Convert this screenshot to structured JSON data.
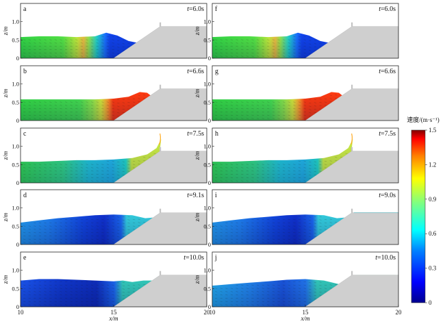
{
  "chart_data": {
    "type": "heatmap",
    "xlabel": "x/m",
    "ylabel": "z/m",
    "xlim": [
      10,
      20
    ],
    "ylim": [
      0,
      1.5
    ],
    "x_ticks": [
      "10",
      "15",
      "20"
    ],
    "y_ticks": [
      "0",
      "0.5",
      "1.0"
    ],
    "colorbar": {
      "label": "速度/(m·s⁻¹)",
      "range": [
        0,
        1.5
      ],
      "ticks": [
        "0",
        "0.3",
        "0.6",
        "0.9",
        "1.2",
        "1.5"
      ],
      "colors": [
        "#00008f",
        "#0000ff",
        "#0080ff",
        "#00ffff",
        "#80ff80",
        "#ffff00",
        "#ff8000",
        "#ff0000",
        "#800000"
      ]
    },
    "panels": [
      {
        "letter": "a",
        "time": "6.0s",
        "col": 0,
        "row": 0
      },
      {
        "letter": "b",
        "time": "6.6s",
        "col": 0,
        "row": 1
      },
      {
        "letter": "c",
        "time": "7.5s",
        "col": 0,
        "row": 2
      },
      {
        "letter": "d",
        "time": "9.1s",
        "col": 0,
        "row": 3
      },
      {
        "letter": "e",
        "time": "10.0s",
        "col": 0,
        "row": 4
      },
      {
        "letter": "f",
        "time": "6.0s",
        "col": 1,
        "row": 0
      },
      {
        "letter": "g",
        "time": "6.6s",
        "col": 1,
        "row": 1
      },
      {
        "letter": "h",
        "time": "7.5s",
        "col": 1,
        "row": 2
      },
      {
        "letter": "i",
        "time": "9.0s",
        "col": 1,
        "row": 3
      },
      {
        "letter": "j",
        "time": "10.0s",
        "col": 1,
        "row": 4
      }
    ]
  }
}
